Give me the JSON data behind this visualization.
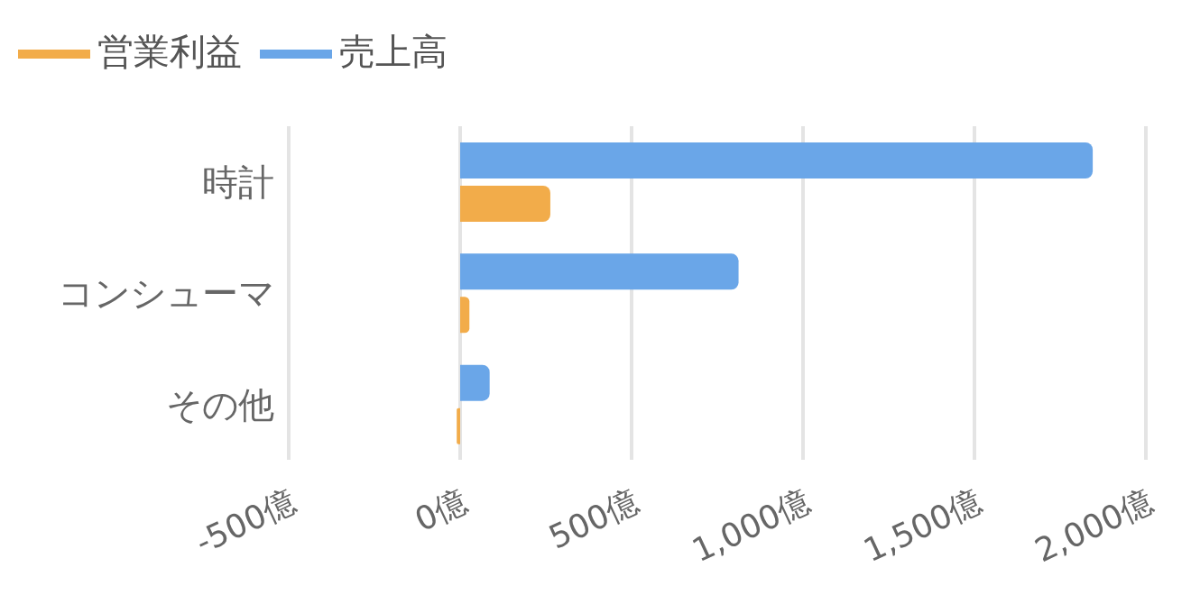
{
  "chart_data": {
    "type": "bar",
    "orientation": "horizontal",
    "categories": [
      "時計",
      "コンシューマ",
      "その他"
    ],
    "series": [
      {
        "name": "売上高",
        "color": "#6aa6e8",
        "values": [
          1845,
          812,
          86
        ]
      },
      {
        "name": "営業利益",
        "color": "#f2ac4a",
        "values": [
          263,
          27,
          -10
        ]
      }
    ],
    "xlim": [
      -500,
      2000
    ],
    "xticks": [
      {
        "value": -500,
        "label": "-500億"
      },
      {
        "value": 0,
        "label": "0億"
      },
      {
        "value": 500,
        "label": "500億"
      },
      {
        "value": 1000,
        "label": "1,000億"
      },
      {
        "value": 1500,
        "label": "1,500億"
      },
      {
        "value": 2000,
        "label": "2,000億"
      }
    ],
    "grid": "x",
    "legend": "top left"
  }
}
